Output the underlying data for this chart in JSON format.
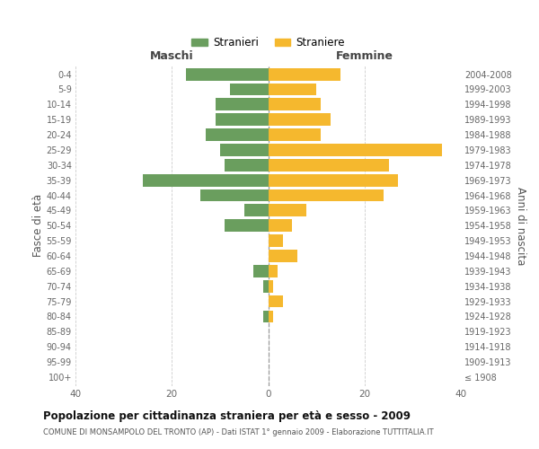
{
  "age_groups": [
    "100+",
    "95-99",
    "90-94",
    "85-89",
    "80-84",
    "75-79",
    "70-74",
    "65-69",
    "60-64",
    "55-59",
    "50-54",
    "45-49",
    "40-44",
    "35-39",
    "30-34",
    "25-29",
    "20-24",
    "15-19",
    "10-14",
    "5-9",
    "0-4"
  ],
  "birth_years": [
    "≤ 1908",
    "1909-1913",
    "1914-1918",
    "1919-1923",
    "1924-1928",
    "1929-1933",
    "1934-1938",
    "1939-1943",
    "1944-1948",
    "1949-1953",
    "1954-1958",
    "1959-1963",
    "1964-1968",
    "1969-1973",
    "1974-1978",
    "1979-1983",
    "1984-1988",
    "1989-1993",
    "1994-1998",
    "1999-2003",
    "2004-2008"
  ],
  "males": [
    0,
    0,
    0,
    0,
    1,
    0,
    1,
    3,
    0,
    0,
    9,
    5,
    14,
    26,
    9,
    10,
    13,
    11,
    11,
    8,
    17
  ],
  "females": [
    0,
    0,
    0,
    0,
    1,
    3,
    1,
    2,
    6,
    3,
    5,
    8,
    24,
    27,
    25,
    36,
    11,
    13,
    11,
    10,
    15
  ],
  "male_color": "#6a9e5e",
  "female_color": "#f5b82e",
  "background_color": "#ffffff",
  "grid_color": "#cccccc",
  "title": "Popolazione per cittadinanza straniera per età e sesso - 2009",
  "subtitle": "COMUNE DI MONSAMPOLO DEL TRONTO (AP) - Dati ISTAT 1° gennaio 2009 - Elaborazione TUTTITALIA.IT",
  "xlabel_left": "Maschi",
  "xlabel_right": "Femmine",
  "ylabel_left": "Fasce di età",
  "ylabel_right": "Anni di nascita",
  "legend_male": "Stranieri",
  "legend_female": "Straniere",
  "xlim": 40,
  "bar_height": 0.82
}
